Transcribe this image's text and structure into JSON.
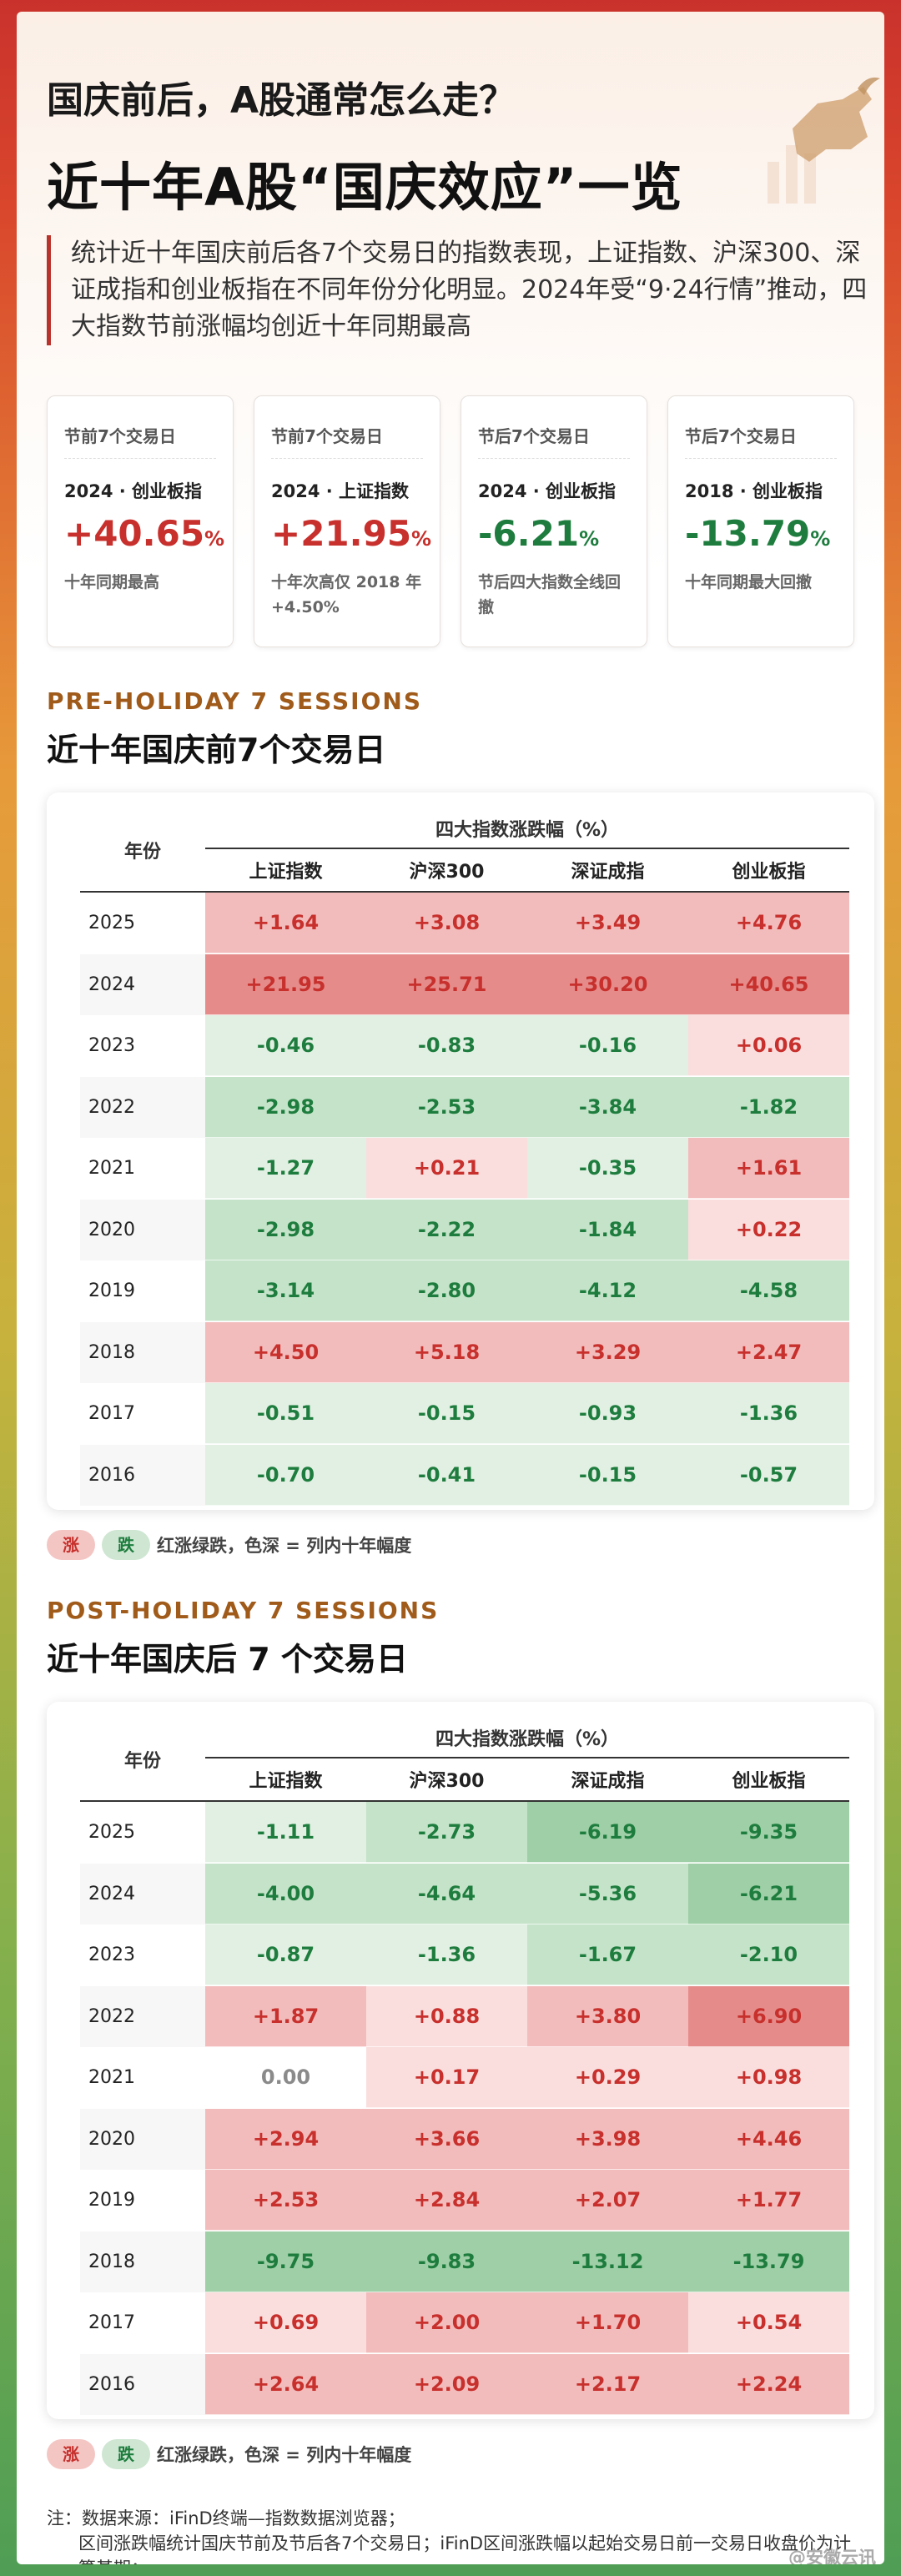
{
  "header": {
    "title1": "国庆前后，A股通常怎么走？",
    "title2": "近十年A股“国庆效应”一览",
    "intro": "统计近十年国庆前后各7个交易日的指数表现，上证指数、沪深300、深证成指和创业板指在不同年份分化明显。2024年受“9·24行情”推动，四大指数节前涨幅均创近十年同期最高"
  },
  "cards": [
    {
      "label": "节前7个交易日",
      "sub": "2024 · 创业板指",
      "value": "+40.65",
      "pct": "%",
      "tone": "red",
      "note": "十年同期最高"
    },
    {
      "label": "节前7个交易日",
      "sub": "2024 · 上证指数",
      "value": "+21.95",
      "pct": "%",
      "tone": "red",
      "note": "十年次高仅 2018 年 +4.50%"
    },
    {
      "label": "节后7个交易日",
      "sub": "2024 · 创业板指",
      "value": "-6.21",
      "pct": "%",
      "tone": "green",
      "note": "节后四大指数全线回撤"
    },
    {
      "label": "节后7个交易日",
      "sub": "2018 · 创业板指",
      "value": "-13.79",
      "pct": "%",
      "tone": "green",
      "note": "十年同期最大回撤"
    }
  ],
  "colors": {
    "up_strong": "#e58c8b",
    "up_mid": "#f3bcbc",
    "up_light": "#fadede",
    "down_strong": "#9ecfa6",
    "down_mid": "#c5e3c9",
    "down_light": "#e2f0e3",
    "zero": "#ffffff",
    "red_text": "#c7302c",
    "green_text": "#1e7d3e"
  },
  "pre": {
    "section_en": "PRE-HOLIDAY 7 SESSIONS",
    "section_cn": "近十年国庆前7个交易日",
    "year_header": "年份",
    "group_header": "四大指数涨跌幅（%）",
    "columns": [
      "上证指数",
      "沪深300",
      "深证成指",
      "创业板指"
    ],
    "rows": [
      {
        "year": "2025",
        "values": [
          "+1.64",
          "+3.08",
          "+3.49",
          "+4.76"
        ]
      },
      {
        "year": "2024",
        "values": [
          "+21.95",
          "+25.71",
          "+30.20",
          "+40.65"
        ]
      },
      {
        "year": "2023",
        "values": [
          "-0.46",
          "-0.83",
          "-0.16",
          "+0.06"
        ]
      },
      {
        "year": "2022",
        "values": [
          "-2.98",
          "-2.53",
          "-3.84",
          "-1.82"
        ]
      },
      {
        "year": "2021",
        "values": [
          "-1.27",
          "+0.21",
          "-0.35",
          "+1.61"
        ]
      },
      {
        "year": "2020",
        "values": [
          "-2.98",
          "-2.22",
          "-1.84",
          "+0.22"
        ]
      },
      {
        "year": "2019",
        "values": [
          "-3.14",
          "-2.80",
          "-4.12",
          "-4.58"
        ]
      },
      {
        "year": "2018",
        "values": [
          "+4.50",
          "+5.18",
          "+3.29",
          "+2.47"
        ]
      },
      {
        "year": "2017",
        "values": [
          "-0.51",
          "-0.15",
          "-0.93",
          "-1.36"
        ]
      },
      {
        "year": "2016",
        "values": [
          "-0.70",
          "-0.41",
          "-0.15",
          "-0.57"
        ]
      }
    ],
    "legend_up": "涨",
    "legend_down": "跌",
    "legend_text": "红涨绿跌，色深 = 列内十年幅度"
  },
  "post": {
    "section_en": "POST-HOLIDAY 7 SESSIONS",
    "section_cn": "近十年国庆后 7 个交易日",
    "year_header": "年份",
    "group_header": "四大指数涨跌幅（%）",
    "columns": [
      "上证指数",
      "沪深300",
      "深证成指",
      "创业板指"
    ],
    "rows": [
      {
        "year": "2025",
        "values": [
          "-1.11",
          "-2.73",
          "-6.19",
          "-9.35"
        ]
      },
      {
        "year": "2024",
        "values": [
          "-4.00",
          "-4.64",
          "-5.36",
          "-6.21"
        ]
      },
      {
        "year": "2023",
        "values": [
          "-0.87",
          "-1.36",
          "-1.67",
          "-2.10"
        ]
      },
      {
        "year": "2022",
        "values": [
          "+1.87",
          "+0.88",
          "+3.80",
          "+6.90"
        ]
      },
      {
        "year": "2021",
        "values": [
          "0.00",
          "+0.17",
          "+0.29",
          "+0.98"
        ]
      },
      {
        "year": "2020",
        "values": [
          "+2.94",
          "+3.66",
          "+3.98",
          "+4.46"
        ]
      },
      {
        "year": "2019",
        "values": [
          "+2.53",
          "+2.84",
          "+2.07",
          "+1.77"
        ]
      },
      {
        "year": "2018",
        "values": [
          "-9.75",
          "-9.83",
          "-13.12",
          "-13.79"
        ]
      },
      {
        "year": "2017",
        "values": [
          "+0.69",
          "+2.00",
          "+1.70",
          "+0.54"
        ]
      },
      {
        "year": "2016",
        "values": [
          "+2.64",
          "+2.09",
          "+2.17",
          "+2.24"
        ]
      }
    ],
    "legend_up": "涨",
    "legend_down": "跌",
    "legend_text": "红涨绿跌，色深 = 列内十年幅度"
  },
  "notes": {
    "line1": "注：数据来源：iFinD终端—指数数据浏览器；",
    "line2": "区间涨跌幅统计国庆节前及节后各7个交易日；iFinD区间涨跌幅以起始交易日前一交易日收盘价为计算基期；"
  },
  "watermark": "@安徽云讯"
}
